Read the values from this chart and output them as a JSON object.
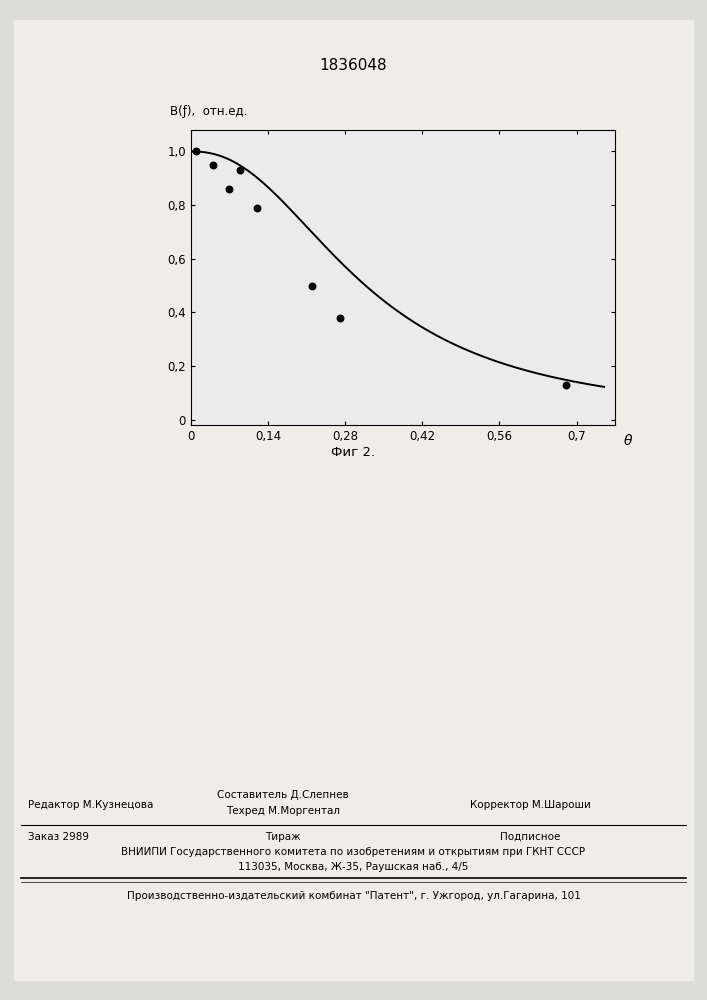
{
  "title": "1836048",
  "ylabel": "B(ƒ),  отн.ед.",
  "xlabel_end": "θ",
  "fig_caption": "Фиг 2.",
  "xlim": [
    0,
    0.77
  ],
  "ylim": [
    -0.02,
    1.08
  ],
  "xticks": [
    0,
    0.14,
    0.28,
    0.42,
    0.56,
    0.7
  ],
  "xtick_labels": [
    "0",
    "0,14",
    "0,28",
    "0,42",
    "0,56",
    "0,7"
  ],
  "yticks": [
    0.2,
    0.4,
    0.6,
    0.8,
    1.0
  ],
  "ytick_labels": [
    "0,2",
    "0,4",
    "0,6",
    "0,8",
    "1,0"
  ],
  "scatter_x": [
    0.01,
    0.04,
    0.07,
    0.09,
    0.12,
    0.22,
    0.27,
    0.68
  ],
  "scatter_y": [
    1.0,
    0.95,
    0.86,
    0.93,
    0.79,
    0.5,
    0.38,
    0.13
  ],
  "bg_color": "#e8e8e4",
  "plot_bg": "#f2f2ee",
  "footer_editor": "Редактор М.Кузнецова",
  "footer_comp1": "Составитель Д.Слепнев",
  "footer_comp2": "Техред М.Моргентал",
  "footer_corrector": "Корректор М.Шароши",
  "footer_zakaz": "Заказ 2989",
  "footer_tirazh": "Тираж",
  "footer_podp": "Подписное",
  "footer_vniip": "ВНИИПИ Государственного комитета по изобретениям и открытиям при ГКНТ СССР",
  "footer_addr": "113035, Москва, Ж-35, Раушская наб., 4/5",
  "footer_patent": "Производственно-издательский комбинат \"Патент\", г. Ужгород, ул.Гагарина, 101"
}
